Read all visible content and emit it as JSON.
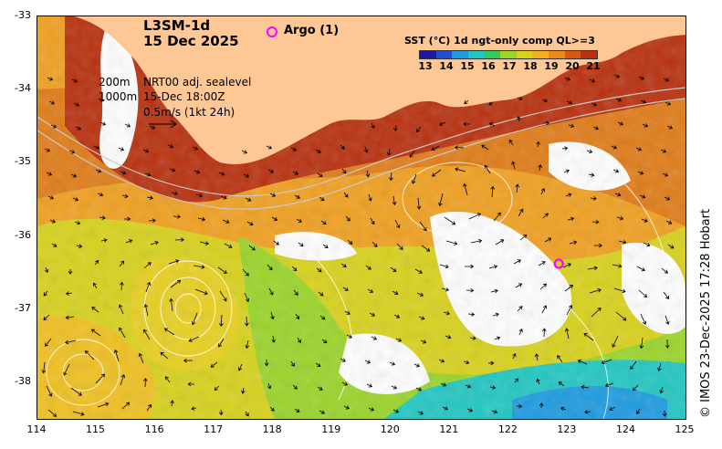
{
  "header": {
    "product": "L3SM-1d",
    "date": "15 Dec 2025"
  },
  "argo_legend": {
    "label": "Argo (1)",
    "color": "#ff00ff"
  },
  "contour_legend": {
    "depth_200": "200m",
    "depth_1000": "1000m"
  },
  "current_legend": {
    "line1": "NRT00 adj. sealevel",
    "line2": "15-Dec 18:00Z",
    "line3": "0.5m/s (1kt 24h)"
  },
  "colorbar": {
    "title": "SST (°C) 1d ngt-only comp QL>=3",
    "ticks": [
      "13",
      "14",
      "15",
      "16",
      "17",
      "18",
      "19",
      "20",
      "21"
    ],
    "colors": [
      "#1a1a9c",
      "#1f4fd0",
      "#1e9be0",
      "#22c7c2",
      "#35c95a",
      "#9ad52a",
      "#d8d21c",
      "#f0b020",
      "#e88a1c",
      "#d45a14",
      "#b8300e"
    ]
  },
  "axes": {
    "lon_ticks": [
      "114",
      "115",
      "116",
      "117",
      "118",
      "119",
      "120",
      "121",
      "122",
      "123",
      "124",
      "125"
    ],
    "lat_ticks": [
      "-33",
      "-34",
      "-35",
      "-36",
      "-37",
      "-38"
    ],
    "lon_range": [
      114,
      125
    ],
    "lat_range": [
      -38.5,
      -33
    ]
  },
  "argo_float": {
    "lon": 122.85,
    "lat": -36.38
  },
  "land_color": "#fdc896",
  "credit": "© IMOS 23-Dec-2025 17:28 Hobart"
}
